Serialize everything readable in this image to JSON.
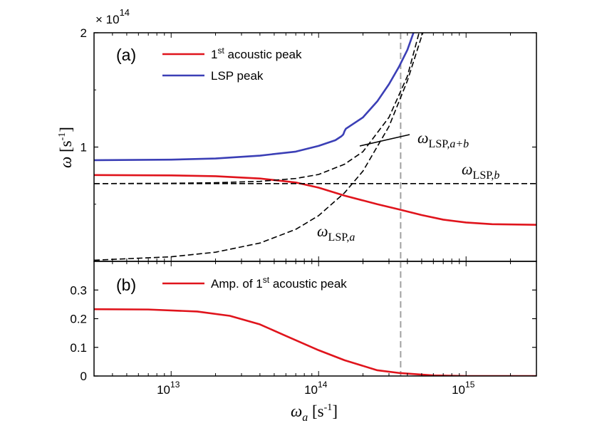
{
  "chart_data": [
    {
      "panel": "(a)",
      "type": "line",
      "xscale": "log",
      "xlim": [
        3000000000000.0,
        3000000000000000.0
      ],
      "ylim": [
        0,
        2
      ],
      "y_multiplier": "× 10",
      "y_multiplier_exponent": "14",
      "ylabel": "ω",
      "ylabel_unit": "[s",
      "ylabel_unit_exp": "-1",
      "ylabel_unit_close": "]",
      "yticks": [
        {
          "value": 1,
          "label": "1"
        },
        {
          "value": 2,
          "label": "2"
        }
      ],
      "legend": [
        {
          "series": "acoustic",
          "label": "1",
          "sup": "st",
          "label_rest": " acoustic peak",
          "color": "#e0141c"
        },
        {
          "series": "lsp_peak",
          "label": "LSP peak",
          "color": "#3b3fb6"
        }
      ],
      "series": [
        {
          "name": "acoustic",
          "color": "#e0141c",
          "style": "solid",
          "points": [
            [
              3000000000000.0,
              0.755
            ],
            [
              10000000000000.0,
              0.752
            ],
            [
              20000000000000.0,
              0.745
            ],
            [
              40000000000000.0,
              0.725
            ],
            [
              70000000000000.0,
              0.69
            ],
            [
              100000000000000.0,
              0.645
            ],
            [
              150000000000000.0,
              0.575
            ],
            [
              250000000000000.0,
              0.5
            ],
            [
              350000000000000.0,
              0.455
            ],
            [
              500000000000000.0,
              0.405
            ],
            [
              700000000000000.0,
              0.365
            ],
            [
              1000000000000000.0,
              0.34
            ],
            [
              1500000000000000.0,
              0.325
            ],
            [
              3000000000000000.0,
              0.32
            ]
          ]
        },
        {
          "name": "lsp_peak",
          "color": "#3b3fb6",
          "style": "solid",
          "points": [
            [
              3000000000000.0,
              0.885
            ],
            [
              10000000000000.0,
              0.89
            ],
            [
              20000000000000.0,
              0.9
            ],
            [
              40000000000000.0,
              0.925
            ],
            [
              70000000000000.0,
              0.96
            ],
            [
              100000000000000.0,
              1.01
            ],
            [
              130000000000000.0,
              1.06
            ],
            [
              143000000000000.0,
              1.095
            ],
            [
              147000000000000.0,
              1.11
            ],
            [
              150000000000000.0,
              1.14
            ],
            [
              153000000000000.0,
              1.16
            ],
            [
              200000000000000.0,
              1.26
            ],
            [
              250000000000000.0,
              1.4
            ],
            [
              300000000000000.0,
              1.55
            ],
            [
              350000000000000.0,
              1.7
            ],
            [
              400000000000000.0,
              1.85
            ],
            [
              440000000000000.0,
              2.0
            ]
          ]
        },
        {
          "name": "omega_lsp_a",
          "label": "ω",
          "label_sub": "LSP,",
          "label_sub_italic": "a",
          "color": "#000000",
          "style": "dashed",
          "points": [
            [
              3000000000000.0,
              0.01
            ],
            [
              10000000000000.0,
              0.04
            ],
            [
              20000000000000.0,
              0.08
            ],
            [
              40000000000000.0,
              0.16
            ],
            [
              70000000000000.0,
              0.28
            ],
            [
              100000000000000.0,
              0.4
            ],
            [
              150000000000000.0,
              0.6
            ],
            [
              200000000000000.0,
              0.79
            ],
            [
              300000000000000.0,
              1.18
            ],
            [
              400000000000000.0,
              1.58
            ],
            [
              500000000000000.0,
              1.97
            ],
            [
              510000000000000.0,
              2.0
            ]
          ]
        },
        {
          "name": "omega_lsp_b",
          "label": "ω",
          "label_sub": "LSP,",
          "label_sub_italic": "b",
          "color": "#000000",
          "style": "dashed",
          "points": [
            [
              3000000000000.0,
              0.68
            ],
            [
              3000000000000000.0,
              0.68
            ]
          ]
        },
        {
          "name": "omega_lsp_ab",
          "label": "ω",
          "label_sub": "LSP,",
          "label_sub_italic": "a+b",
          "color": "#000000",
          "style": "dashed",
          "points": [
            [
              3000000000000.0,
              0.68
            ],
            [
              10000000000000.0,
              0.683
            ],
            [
              20000000000000.0,
              0.688
            ],
            [
              40000000000000.0,
              0.7
            ],
            [
              70000000000000.0,
              0.725
            ],
            [
              100000000000000.0,
              0.76
            ],
            [
              150000000000000.0,
              0.85
            ],
            [
              200000000000000.0,
              0.96
            ],
            [
              300000000000000.0,
              1.26
            ],
            [
              400000000000000.0,
              1.62
            ],
            [
              480000000000000.0,
              2.0
            ]
          ]
        }
      ],
      "vline": {
        "x": 360000000000000.0,
        "color": "#a0a0a0",
        "style": "dashed"
      }
    },
    {
      "panel": "(b)",
      "type": "line",
      "xscale": "log",
      "xlim": [
        3000000000000.0,
        3000000000000000.0
      ],
      "ylim": [
        0,
        0.4
      ],
      "xlabel": "ω",
      "xlabel_sub": "a",
      "xlabel_unit": "[s",
      "xlabel_unit_exp": "-1",
      "xlabel_unit_close": "]",
      "xticks": [
        {
          "value": 10000000000000.0,
          "base": "10",
          "exp": "13"
        },
        {
          "value": 100000000000000.0,
          "base": "10",
          "exp": "14"
        },
        {
          "value": 1000000000000000.0,
          "base": "10",
          "exp": "15"
        }
      ],
      "yticks": [
        {
          "value": 0,
          "label": "0"
        },
        {
          "value": 0.1,
          "label": "0.1"
        },
        {
          "value": 0.2,
          "label": "0.2"
        },
        {
          "value": 0.3,
          "label": "0.3"
        }
      ],
      "legend": [
        {
          "series": "amplitude",
          "label": "Amp. of 1",
          "sup": "st",
          "label_rest": " acoustic peak",
          "color": "#e0141c"
        }
      ],
      "series": [
        {
          "name": "amplitude",
          "color": "#e0141c",
          "style": "solid",
          "points": [
            [
              3000000000000.0,
              0.233
            ],
            [
              7000000000000.0,
              0.232
            ],
            [
              15000000000000.0,
              0.225
            ],
            [
              25000000000000.0,
              0.21
            ],
            [
              40000000000000.0,
              0.18
            ],
            [
              60000000000000.0,
              0.14
            ],
            [
              100000000000000.0,
              0.09
            ],
            [
              150000000000000.0,
              0.055
            ],
            [
              250000000000000.0,
              0.02
            ],
            [
              360000000000000.0,
              0.01
            ],
            [
              600000000000000.0,
              0.002
            ],
            [
              1000000000000000.0,
              0.0
            ],
            [
              3000000000000000.0,
              0.0
            ]
          ]
        }
      ],
      "vline": {
        "x": 360000000000000.0,
        "color": "#a0a0a0",
        "style": "dashed"
      }
    }
  ]
}
